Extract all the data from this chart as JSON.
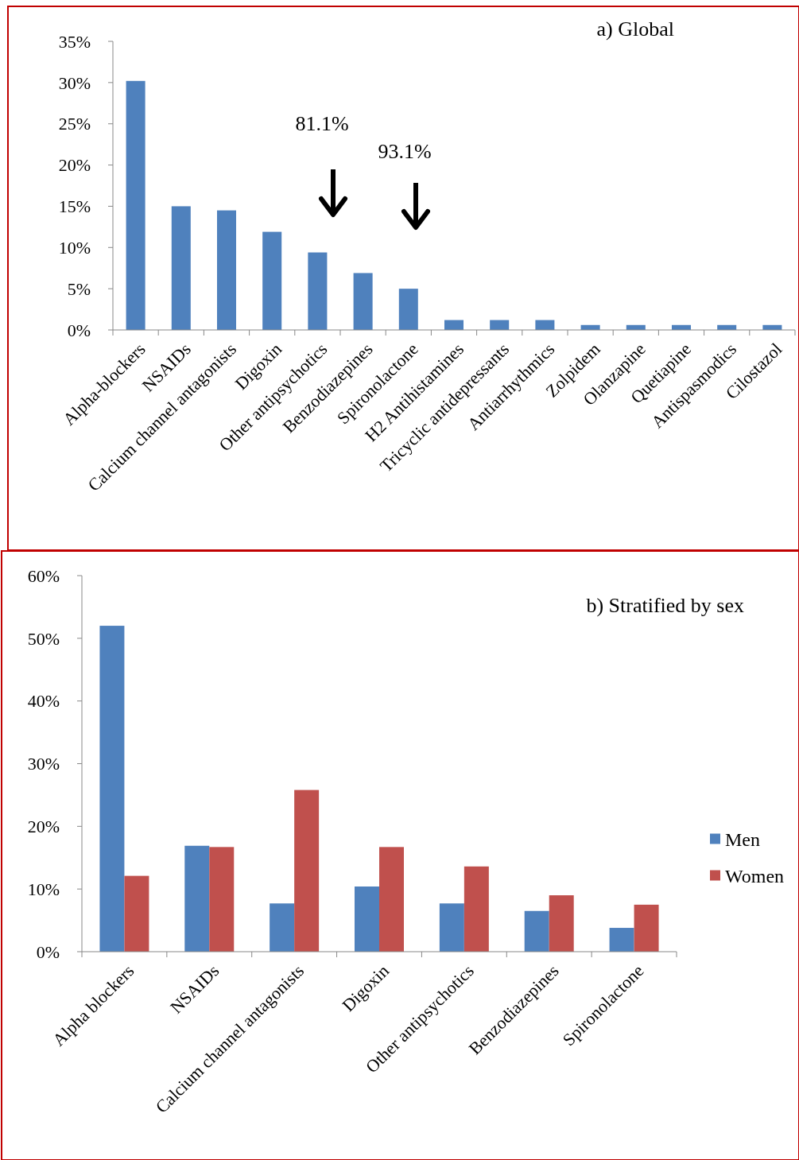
{
  "chart_data": [
    {
      "type": "bar",
      "title": "a) Global",
      "categories": [
        "Alpha-blockers",
        "NSAIDs",
        "Calcium channel antagonists",
        "Digoxin",
        "Other antipsychotics",
        "Benzodiazepines",
        "Spironolactone",
        "H2 Antihistamines",
        "Tricyclic antidepressants",
        "Antiarrhythmics",
        "Zolpidem",
        "Olanzapine",
        "Quetiapine",
        "Antispasmodics",
        "Cilostazol"
      ],
      "series": [
        {
          "color": "#4f81bd",
          "values": [
            30.2,
            15.0,
            14.5,
            11.9,
            9.4,
            6.9,
            5.0,
            1.2,
            1.2,
            1.2,
            0.6,
            0.6,
            0.6,
            0.6,
            0.6
          ]
        }
      ],
      "ylim": [
        0,
        35
      ],
      "yticks": [
        {
          "value": 0,
          "label": "0%"
        },
        {
          "value": 5,
          "label": "5%"
        },
        {
          "value": 10,
          "label": "10%"
        },
        {
          "value": 15,
          "label": "15%"
        },
        {
          "value": 20,
          "label": "20%"
        },
        {
          "value": 25,
          "label": "25%"
        },
        {
          "value": 30,
          "label": "30%"
        },
        {
          "value": 35,
          "label": "35%"
        }
      ],
      "annotations": [
        "81.1%",
        "93.1%"
      ],
      "grid": false,
      "legend": false
    },
    {
      "type": "bar",
      "title": "b) Stratified by sex",
      "categories": [
        "Alpha blockers",
        "NSAIDs",
        "Calcium channel antagonists",
        "Digoxin",
        "Other antipsychotics",
        "Benzodiazepines",
        "Spironolactone"
      ],
      "series": [
        {
          "name": "Men",
          "color": "#4f81bd",
          "values": [
            52.0,
            16.9,
            7.7,
            10.4,
            7.7,
            6.5,
            3.8
          ]
        },
        {
          "name": "Women",
          "color": "#c0504d",
          "values": [
            12.1,
            16.7,
            25.8,
            16.7,
            13.6,
            9.0,
            7.5
          ]
        }
      ],
      "ylim": [
        0,
        60
      ],
      "yticks": [
        {
          "value": 0,
          "label": "0%"
        },
        {
          "value": 10,
          "label": "10%"
        },
        {
          "value": 20,
          "label": "20%"
        },
        {
          "value": 30,
          "label": "30%"
        },
        {
          "value": 40,
          "label": "40%"
        },
        {
          "value": 50,
          "label": "50%"
        },
        {
          "value": 60,
          "label": "60%"
        }
      ],
      "grid": false,
      "legend": "right"
    }
  ]
}
